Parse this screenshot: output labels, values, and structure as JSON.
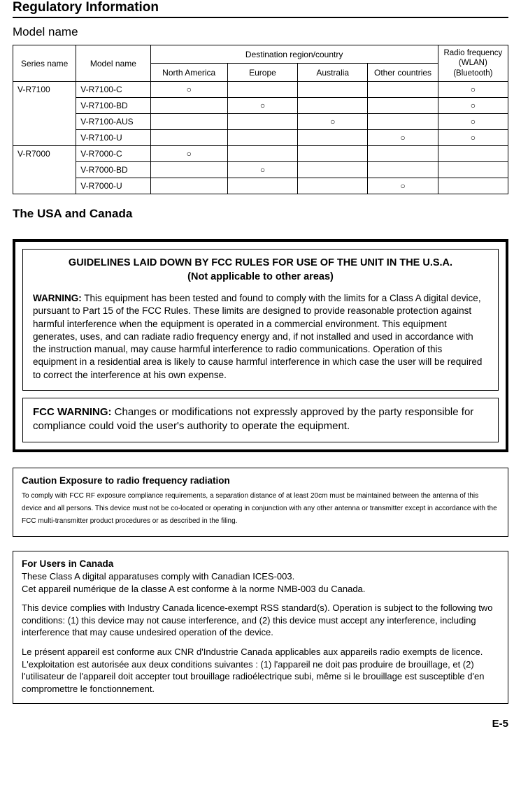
{
  "title": "Regulatory Information",
  "subheading": "Model name",
  "page_number": "E-5",
  "table": {
    "header": {
      "series": "Series name",
      "model": "Model name",
      "destination": "Destination region/country",
      "na": "North America",
      "eu": "Europe",
      "au": "Australia",
      "other": "Other countries",
      "rf_l1": "Radio frequency",
      "rf_l2": "(WLAN)",
      "rf_l3": "(Bluetooth)"
    },
    "mark": "○",
    "series": [
      {
        "name": "V-R7100",
        "models": [
          {
            "name": "V-R7100-C",
            "na": true,
            "eu": false,
            "au": false,
            "other": false,
            "rf": true
          },
          {
            "name": "V-R7100-BD",
            "na": false,
            "eu": true,
            "au": false,
            "other": false,
            "rf": true
          },
          {
            "name": "V-R7100-AUS",
            "na": false,
            "eu": false,
            "au": true,
            "other": false,
            "rf": true
          },
          {
            "name": "V-R7100-U",
            "na": false,
            "eu": false,
            "au": false,
            "other": true,
            "rf": true
          }
        ]
      },
      {
        "name": "V-R7000",
        "models": [
          {
            "name": "V-R7000-C",
            "na": true,
            "eu": false,
            "au": false,
            "other": false,
            "rf": false
          },
          {
            "name": "V-R7000-BD",
            "na": false,
            "eu": true,
            "au": false,
            "other": false,
            "rf": false
          },
          {
            "name": "V-R7000-U",
            "na": false,
            "eu": false,
            "au": false,
            "other": true,
            "rf": false
          }
        ]
      }
    ]
  },
  "usa_canada_heading": "The USA and Canada",
  "fcc": {
    "title_l1": "GUIDELINES LAID DOWN BY FCC RULES FOR USE OF THE UNIT IN THE U.S.A.",
    "title_l2": "(Not applicable to other areas)",
    "warning_label": "WARNING:",
    "warning_text": " This equipment has been tested and found to comply with the limits for a Class A digital device, pursuant to Part 15 of the FCC Rules. These limits are designed to provide reasonable protection against harmful interference when the equipment is operated in a commercial environment. This equipment generates, uses, and can radiate radio frequency energy and, if not installed and used in accordance with the instruction manual, may cause harmful interference to radio communications. Operation of this equipment in a residential area is likely to cause harmful interference in which case the user will be required to correct the interference at his own expense.",
    "fcc_warning_label": "FCC WARNING:",
    "fcc_warning_text": " Changes or modifications not expressly approved by the party responsible for compliance could void the user's authority to operate the equipment."
  },
  "rf_exposure": {
    "title": "Caution Exposure to radio frequency radiation",
    "body": "To comply with FCC RF exposure compliance requirements, a separation distance of at least 20cm must be maintained between the antenna of this device and all persons. This device must not be co-located or operating in conjunction with any other antenna or transmitter except in accordance with the FCC multi-transmitter product procedures or as described in the filing."
  },
  "canada": {
    "title": "For Users in Canada",
    "p1": "These Class A digital apparatuses comply with Canadian ICES-003.",
    "p2": "Cet appareil numérique de la classe A est conforme à la norme NMB-003 du Canada.",
    "p3": "This device complies with Industry Canada licence-exempt RSS standard(s). Operation is subject to the following two conditions: (1) this device may not cause interference, and (2) this device must accept any interference, including interference that may cause undesired operation of the device.",
    "p4": "Le présent appareil est conforme aux CNR d'Industrie Canada applicables aux appareils radio exempts de licence. L'exploitation est autorisée aux deux conditions suivantes : (1) l'appareil ne doit pas produire de brouillage, et (2) l'utilisateur de l'appareil doit accepter tout brouillage radioélectrique subi, même si le brouillage est susceptible d'en compromettre le fonctionnement."
  }
}
